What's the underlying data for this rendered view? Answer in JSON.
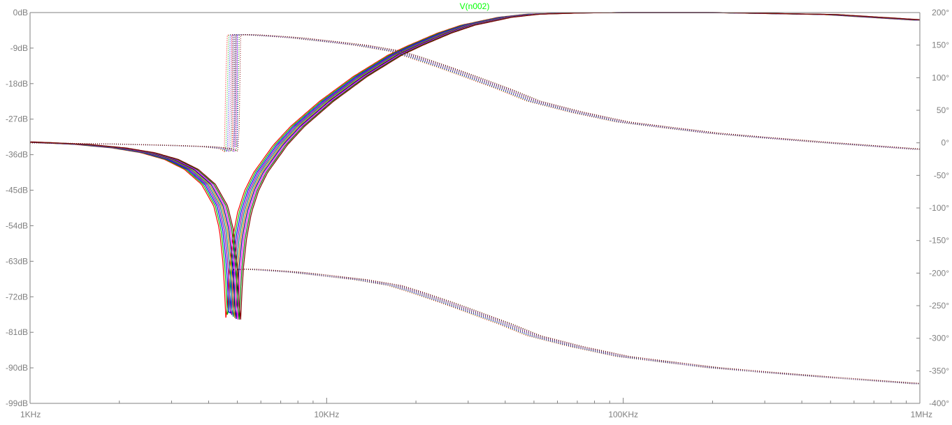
{
  "trace_label": "V(n002)",
  "colors": {
    "background": "#ffffff",
    "axis": "#808080",
    "grid": "#d8d8d8",
    "trace_label": "#00ff00",
    "traces": [
      "#ff0000",
      "#00c000",
      "#0000ff",
      "#a000a0",
      "#008080",
      "#c08000",
      "#000080",
      "#ff00ff",
      "#008000",
      "#800000"
    ]
  },
  "chart_data": {
    "type": "line",
    "title": "V(n002)",
    "x_scale": "log",
    "x_unit": "Hz",
    "xlim": [
      1000,
      1000000
    ],
    "x_ticks": [
      {
        "value": 1000,
        "label": "1KHz"
      },
      {
        "value": 10000,
        "label": "10KHz"
      },
      {
        "value": 100000,
        "label": "100KHz"
      },
      {
        "value": 1000000,
        "label": "1MHz"
      }
    ],
    "y_left": {
      "unit": "dB",
      "ylim": [
        -99,
        0
      ],
      "ticks": [
        {
          "value": 0,
          "label": "0dB"
        },
        {
          "value": -9,
          "label": "-9dB"
        },
        {
          "value": -18,
          "label": "-18dB"
        },
        {
          "value": -27,
          "label": "-27dB"
        },
        {
          "value": -36,
          "label": "-36dB"
        },
        {
          "value": -45,
          "label": "-45dB"
        },
        {
          "value": -54,
          "label": "-54dB"
        },
        {
          "value": -63,
          "label": "-63dB"
        },
        {
          "value": -72,
          "label": "-72dB"
        },
        {
          "value": -81,
          "label": "-81dB"
        },
        {
          "value": -90,
          "label": "-90dB"
        },
        {
          "value": -99,
          "label": "-99dB"
        }
      ]
    },
    "y_right": {
      "unit": "degrees",
      "ylim": [
        -400,
        200
      ],
      "ticks": [
        {
          "value": 200,
          "label": "200°"
        },
        {
          "value": 150,
          "label": "150°"
        },
        {
          "value": 100,
          "label": "100°"
        },
        {
          "value": 50,
          "label": "50°"
        },
        {
          "value": 0,
          "label": "0°"
        },
        {
          "value": -50,
          "label": "-50°"
        },
        {
          "value": -100,
          "label": "-100°"
        },
        {
          "value": -150,
          "label": "-150°"
        },
        {
          "value": -200,
          "label": "-200°"
        },
        {
          "value": -250,
          "label": "-250°"
        },
        {
          "value": -300,
          "label": "-300°"
        },
        {
          "value": -350,
          "label": "-350°"
        },
        {
          "value": -400,
          "label": "-400°"
        }
      ]
    },
    "grid": false,
    "series": [
      {
        "quantity": "magnitude_dB",
        "axis": "left",
        "style": "solid",
        "count_overlaid": 10,
        "x": [
          1000,
          1500,
          2000,
          2500,
          3000,
          3500,
          4000,
          4400,
          4600,
          4750,
          4850,
          4950,
          5100,
          5300,
          5600,
          6000,
          7000,
          8000,
          10000,
          13000,
          17000,
          20000,
          25000,
          30000,
          40000,
          50000,
          70000,
          100000,
          200000,
          500000,
          1000000
        ],
        "values": [
          -32.8,
          -33.4,
          -34.3,
          -35.5,
          -37.2,
          -39.7,
          -43.5,
          -49.0,
          -55.0,
          -65.0,
          -80.0,
          -66.0,
          -57.0,
          -50.5,
          -45.0,
          -40.5,
          -33.5,
          -28.8,
          -22.5,
          -16.2,
          -10.8,
          -8.3,
          -5.2,
          -3.2,
          -1.2,
          -0.4,
          -0.1,
          0.0,
          0.0,
          -0.5,
          -1.9
        ]
      },
      {
        "quantity": "phase_deg",
        "axis": "right",
        "style": "dotted",
        "branch": "upper",
        "count_overlaid": 10,
        "x": [
          1000,
          2000,
          3000,
          4000,
          4600,
          4800,
          4850,
          5000,
          5500,
          6000,
          7000,
          8000,
          10000,
          13000,
          17000,
          20000,
          25000,
          30000,
          40000,
          50000,
          70000,
          100000,
          150000,
          200000,
          300000,
          500000,
          1000000
        ],
        "values": [
          0,
          -2,
          -4,
          -6,
          -9,
          -14,
          165,
          166,
          166,
          165,
          163,
          161,
          156,
          150,
          141,
          131,
          116,
          103,
          82,
          64,
          47,
          32,
          22,
          15,
          8,
          0,
          -10
        ]
      },
      {
        "quantity": "phase_deg",
        "axis": "right",
        "style": "dotted",
        "branch": "lower (wrapped -360°)",
        "count_overlaid": 10,
        "x": [
          4850,
          5000,
          5500,
          6000,
          7000,
          8000,
          10000,
          13000,
          17000,
          20000,
          25000,
          30000,
          40000,
          50000,
          70000,
          100000,
          150000,
          200000,
          300000,
          500000,
          1000000
        ],
        "values": [
          -195,
          -194,
          -194,
          -195,
          -197,
          -199,
          -204,
          -210,
          -219,
          -229,
          -244,
          -257,
          -278,
          -296,
          -313,
          -328,
          -338,
          -345,
          -352,
          -360,
          -370
        ]
      }
    ]
  }
}
